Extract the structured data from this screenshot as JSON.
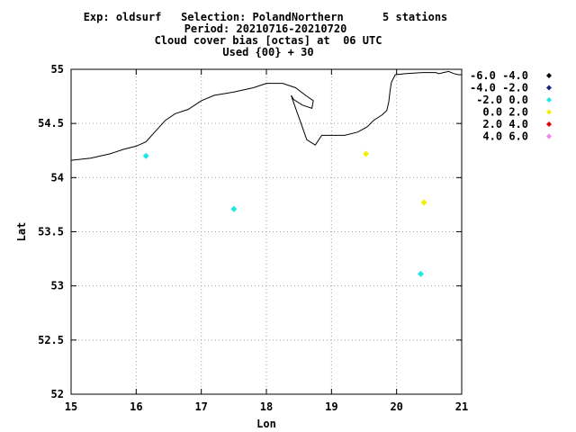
{
  "chart_data": {
    "type": "scatter",
    "title_lines": [
      "Exp: oldsurf   Selection: PolandNorthern      5 stations",
      "Period: 20210716-20210720",
      "Cloud cover bias [octas] at  06 UTC",
      "Used {00} + 30"
    ],
    "xlabel": "Lon",
    "ylabel": "Lat",
    "xlim": [
      15,
      21
    ],
    "ylim": [
      52,
      55
    ],
    "xticks": [
      "15",
      "16",
      "17",
      "18",
      "19",
      "20",
      "21"
    ],
    "yticks": [
      "52",
      "52.5",
      "53",
      "53.5",
      "54",
      "54.5",
      "55"
    ],
    "grid": true,
    "legend_position": "right",
    "legend": [
      {
        "label": "-6.0 -4.0",
        "color": "#000000"
      },
      {
        "label": "-4.0 -2.0",
        "color": "#1a237e"
      },
      {
        "label": "-2.0 0.0",
        "color": "#22e6e6"
      },
      {
        "label": "0.0 2.0",
        "color": "#f0f000"
      },
      {
        "label": "2.0 4.0",
        "color": "#e00000"
      },
      {
        "label": "4.0 6.0",
        "color": "#ee82ee"
      }
    ],
    "points": [
      {
        "lon": 16.15,
        "lat": 54.2,
        "bin": 2
      },
      {
        "lon": 17.5,
        "lat": 53.71,
        "bin": 2
      },
      {
        "lon": 19.53,
        "lat": 54.22,
        "bin": 3
      },
      {
        "lon": 20.37,
        "lat": 53.11,
        "bin": 2
      },
      {
        "lon": 20.42,
        "lat": 53.77,
        "bin": 3
      }
    ],
    "coastline": [
      [
        15.0,
        54.16
      ],
      [
        15.3,
        54.18
      ],
      [
        15.6,
        54.22
      ],
      [
        15.8,
        54.26
      ],
      [
        16.0,
        54.29
      ],
      [
        16.15,
        54.33
      ],
      [
        16.3,
        54.43
      ],
      [
        16.45,
        54.53
      ],
      [
        16.6,
        54.59
      ],
      [
        16.8,
        54.63
      ],
      [
        17.0,
        54.71
      ],
      [
        17.2,
        54.76
      ],
      [
        17.5,
        54.79
      ],
      [
        17.8,
        54.83
      ],
      [
        18.0,
        54.87
      ],
      [
        18.25,
        54.87
      ],
      [
        18.45,
        54.83
      ],
      [
        18.6,
        54.76
      ],
      [
        18.72,
        54.71
      ],
      [
        18.7,
        54.64
      ],
      [
        18.55,
        54.67
      ],
      [
        18.42,
        54.72
      ],
      [
        18.38,
        54.76
      ],
      [
        18.45,
        54.64
      ],
      [
        18.55,
        54.47
      ],
      [
        18.62,
        54.35
      ],
      [
        18.75,
        54.3
      ],
      [
        18.85,
        54.39
      ],
      [
        19.0,
        54.39
      ],
      [
        19.2,
        54.39
      ],
      [
        19.4,
        54.42
      ],
      [
        19.55,
        54.47
      ],
      [
        19.65,
        54.53
      ],
      [
        19.78,
        54.58
      ],
      [
        19.85,
        54.62
      ],
      [
        19.88,
        54.7
      ],
      [
        19.9,
        54.8
      ],
      [
        19.92,
        54.88
      ],
      [
        19.98,
        54.95
      ],
      [
        20.15,
        54.96
      ],
      [
        20.4,
        54.97
      ],
      [
        20.6,
        54.97
      ],
      [
        20.65,
        54.96
      ],
      [
        20.72,
        54.97
      ],
      [
        20.8,
        54.98
      ],
      [
        20.88,
        54.96
      ],
      [
        20.95,
        54.95
      ],
      [
        21.0,
        54.95
      ]
    ]
  }
}
